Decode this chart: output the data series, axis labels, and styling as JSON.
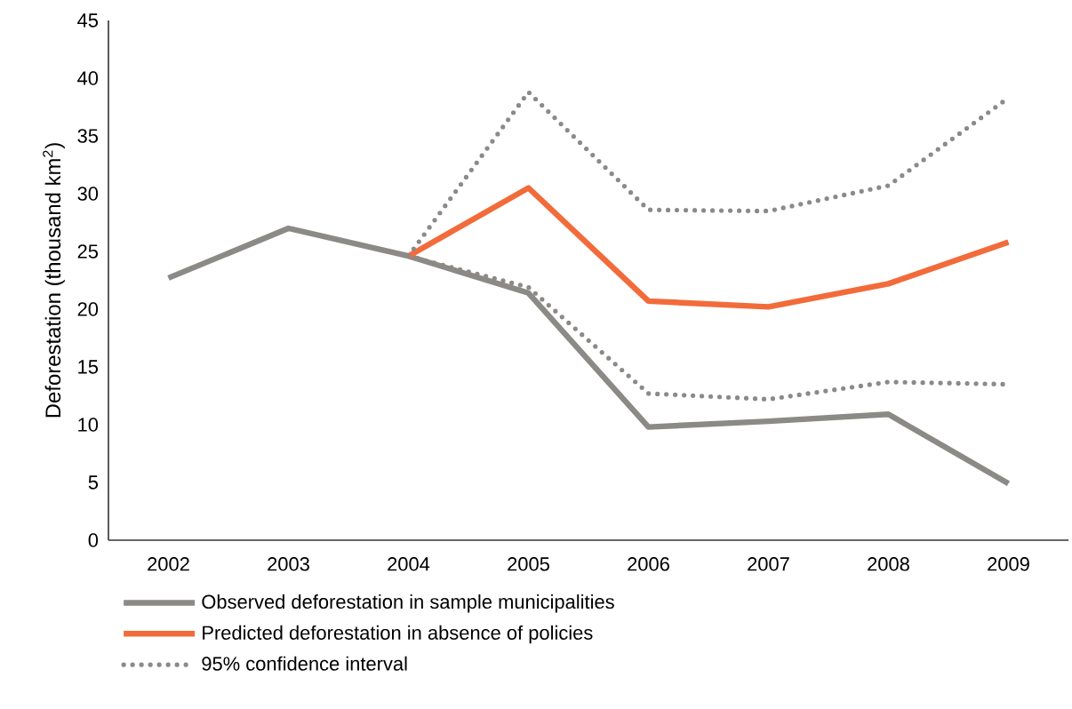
{
  "chart_data": {
    "type": "line",
    "ylabel": "Deforestation (thousand km$^{2}$)",
    "categories": [
      "2002",
      "2003",
      "2004",
      "2005",
      "2006",
      "2007",
      "2008",
      "2009"
    ],
    "series": [
      {
        "name": "Observed deforestation in sample municipalities",
        "color": "#8c8a87",
        "line_style": "solid",
        "values": [
          22.7,
          27.0,
          24.6,
          21.4,
          9.8,
          10.3,
          10.9,
          4.9
        ]
      },
      {
        "name": "Predicted deforestation in absence of policies",
        "color": "#f26b3a",
        "line_style": "solid",
        "values": [
          null,
          null,
          24.6,
          30.5,
          20.7,
          20.2,
          22.2,
          25.8
        ]
      },
      {
        "name": "95% confidence interval",
        "color": "#8c8a87",
        "line_style": "dotted",
        "values": [
          null,
          null,
          24.6,
          38.8,
          28.6,
          28.5,
          30.7,
          38.3
        ]
      },
      {
        "color": "#8c8a87",
        "line_style": "dotted",
        "values": [
          null,
          null,
          24.6,
          21.9,
          12.7,
          12.2,
          13.7,
          13.5
        ]
      }
    ],
    "ylim": [
      0,
      45
    ],
    "yticks": [
      0,
      5,
      10,
      15,
      20,
      25,
      30,
      35,
      40,
      45
    ],
    "grid": false,
    "legend": "bottom",
    "marker": "none"
  }
}
